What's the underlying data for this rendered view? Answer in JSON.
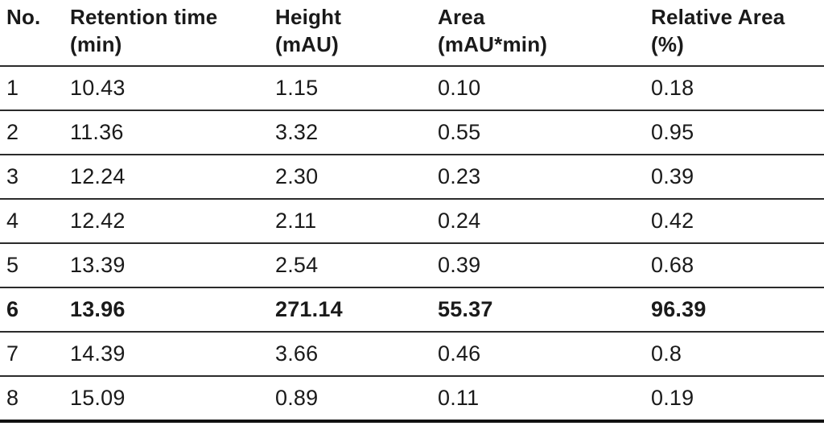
{
  "table": {
    "columns": [
      {
        "label": "No.",
        "unit": ""
      },
      {
        "label": "Retention time",
        "unit": "(min)"
      },
      {
        "label": "Height",
        "unit": "(mAU)"
      },
      {
        "label": "Area",
        "unit": "(mAU*min)"
      },
      {
        "label": "Relative Area",
        "unit": "(%)"
      }
    ],
    "rows": [
      {
        "cells": [
          "1",
          "10.43",
          "1.15",
          "0.10",
          "0.18"
        ],
        "emphasis": false
      },
      {
        "cells": [
          "2",
          "11.36",
          "3.32",
          "0.55",
          "0.95"
        ],
        "emphasis": false
      },
      {
        "cells": [
          "3",
          "12.24",
          "2.30",
          "0.23",
          "0.39"
        ],
        "emphasis": false
      },
      {
        "cells": [
          "4",
          "12.42",
          "2.11",
          "0.24",
          "0.42"
        ],
        "emphasis": false
      },
      {
        "cells": [
          "5",
          "13.39",
          "2.54",
          "0.39",
          "0.68"
        ],
        "emphasis": false
      },
      {
        "cells": [
          "6",
          "13.96",
          "271.14",
          "55.37",
          "96.39"
        ],
        "emphasis": true
      },
      {
        "cells": [
          "7",
          "14.39",
          "3.66",
          "0.46",
          "0.8"
        ],
        "emphasis": false
      },
      {
        "cells": [
          "8",
          "15.09",
          "0.89",
          "0.11",
          "0.19"
        ],
        "emphasis": false
      }
    ]
  },
  "colors": {
    "background": "#ffffff",
    "text": "#1a1a1a",
    "rule": "#2b2b2b",
    "bottom_rule": "#111111"
  },
  "chart_data": {
    "type": "table",
    "columns": [
      "No.",
      "Retention time (min)",
      "Height (mAU)",
      "Area (mAU*min)",
      "Relative Area (%)"
    ],
    "rows": [
      [
        1,
        10.43,
        1.15,
        0.1,
        0.18
      ],
      [
        2,
        11.36,
        3.32,
        0.55,
        0.95
      ],
      [
        3,
        12.24,
        2.3,
        0.23,
        0.39
      ],
      [
        4,
        12.42,
        2.11,
        0.24,
        0.42
      ],
      [
        5,
        13.39,
        2.54,
        0.39,
        0.68
      ],
      [
        6,
        13.96,
        271.14,
        55.37,
        96.39
      ],
      [
        7,
        14.39,
        3.66,
        0.46,
        0.8
      ],
      [
        8,
        15.09,
        0.89,
        0.11,
        0.19
      ]
    ],
    "emphasized_row_no": 6
  }
}
